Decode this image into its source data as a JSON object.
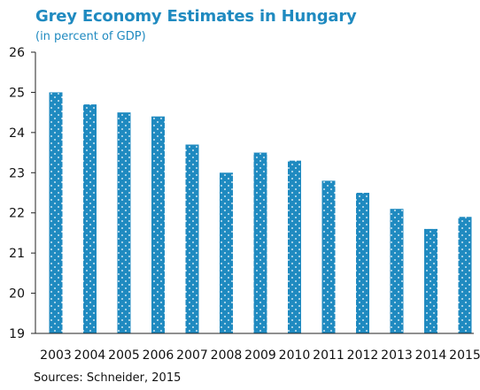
{
  "chart_data": {
    "type": "bar",
    "title": "Grey Economy Estimates in Hungary",
    "subtitle": "(in percent of GDP)",
    "source": "Sources: Schneider, 2015",
    "categories": [
      "2003",
      "2004",
      "2005",
      "2006",
      "2007",
      "2008",
      "2009",
      "2010",
      "2011",
      "2012",
      "2013",
      "2014",
      "2015"
    ],
    "values": [
      25.0,
      24.7,
      24.5,
      24.4,
      23.7,
      23.0,
      23.5,
      23.3,
      22.8,
      22.5,
      22.1,
      21.6,
      21.9
    ],
    "ylim": [
      19,
      26
    ],
    "yticks": [
      19,
      20,
      21,
      22,
      23,
      24,
      25,
      26
    ],
    "xlabel": "",
    "ylabel": "",
    "grid": false,
    "bar_color": "#1f8ac0",
    "title_color": "#1f8ac0",
    "pattern": "white-dots"
  }
}
